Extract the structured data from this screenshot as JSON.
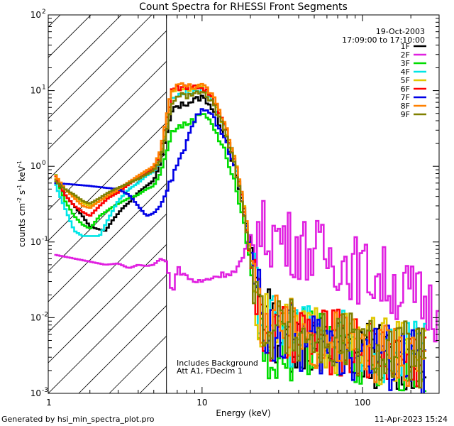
{
  "chart_data": {
    "type": "line",
    "title": "Count Spectra for RHESSI Front Segments",
    "xlabel": "Energy (keV)",
    "ylabel_parts": [
      "counts cm",
      "-2",
      " s",
      "-1",
      " keV",
      "-1"
    ],
    "xscale": "log",
    "yscale": "log",
    "xlim": [
      1.1,
      300
    ],
    "ylim": [
      0.001,
      100
    ],
    "x_ticks": [
      {
        "value": 10,
        "label": "10"
      },
      {
        "value": 100,
        "label": "100"
      }
    ],
    "x_edge_label": "1",
    "y_ticks": [
      {
        "value": 0.001,
        "base": "10",
        "exp": "-3"
      },
      {
        "value": 0.01,
        "base": "10",
        "exp": "-2"
      },
      {
        "value": 0.1,
        "base": "10",
        "exp": "-1"
      },
      {
        "value": 1,
        "base": "10",
        "exp": "0"
      },
      {
        "value": 10,
        "base": "10",
        "exp": "1"
      },
      {
        "value": 100,
        "base": "10",
        "exp": "2"
      }
    ],
    "header_lines": [
      "19-Oct-2003",
      "17:09:00 to 17:10:00"
    ],
    "shaded_region": {
      "x_from": 1.1,
      "x_to": 6
    },
    "annotations": [
      "Includes Background",
      "Att A1, FDecim 1"
    ],
    "series": [
      {
        "name": "1F",
        "color": "#000000",
        "points": [
          [
            1.2,
            0.72
          ],
          [
            1.4,
            0.42
          ],
          [
            1.6,
            0.3
          ],
          [
            1.8,
            0.22
          ],
          [
            2.0,
            0.16
          ],
          [
            2.2,
            0.15
          ],
          [
            2.5,
            0.14
          ],
          [
            2.8,
            0.2
          ],
          [
            3.2,
            0.28
          ],
          [
            3.6,
            0.35
          ],
          [
            4.0,
            0.45
          ],
          [
            4.5,
            0.55
          ],
          [
            5.0,
            0.65
          ],
          [
            5.5,
            1.1
          ],
          [
            6.0,
            2.6
          ],
          [
            6.5,
            5.2
          ],
          [
            7.0,
            6.2
          ],
          [
            8.0,
            6.8
          ],
          [
            9.0,
            7.5
          ],
          [
            10,
            8.2
          ],
          [
            11,
            7.0
          ],
          [
            12,
            5.0
          ],
          [
            14,
            2.5
          ],
          [
            16,
            0.9
          ],
          [
            18,
            0.3
          ],
          [
            20,
            0.1
          ],
          [
            22,
            0.03
          ],
          [
            25,
            0.01
          ],
          [
            30,
            0.006
          ],
          [
            40,
            0.005
          ],
          [
            60,
            0.004
          ],
          [
            100,
            0.0035
          ],
          [
            150,
            0.003
          ],
          [
            250,
            0.0025
          ]
        ]
      },
      {
        "name": "2F",
        "color": "#e020e0",
        "points": [
          [
            1.2,
            0.068
          ],
          [
            1.5,
            0.062
          ],
          [
            2.0,
            0.055
          ],
          [
            2.5,
            0.05
          ],
          [
            3.0,
            0.052
          ],
          [
            3.5,
            0.045
          ],
          [
            4.0,
            0.05
          ],
          [
            4.5,
            0.048
          ],
          [
            5.0,
            0.05
          ],
          [
            5.5,
            0.06
          ],
          [
            6.0,
            0.055
          ],
          [
            6.5,
            0.02
          ],
          [
            7.0,
            0.045
          ],
          [
            8.0,
            0.035
          ],
          [
            9.0,
            0.03
          ],
          [
            10,
            0.03
          ],
          [
            12,
            0.035
          ],
          [
            14,
            0.038
          ],
          [
            16,
            0.04
          ],
          [
            18,
            0.06
          ],
          [
            20,
            0.12
          ],
          [
            22,
            0.13
          ],
          [
            25,
            0.13
          ],
          [
            30,
            0.12
          ],
          [
            35,
            0.1
          ],
          [
            40,
            0.09
          ],
          [
            50,
            0.075
          ],
          [
            60,
            0.065
          ],
          [
            70,
            0.06
          ],
          [
            80,
            0.052
          ],
          [
            100,
            0.04
          ],
          [
            130,
            0.035
          ],
          [
            160,
            0.025
          ],
          [
            200,
            0.02
          ],
          [
            250,
            0.015
          ],
          [
            300,
            0.012
          ]
        ]
      },
      {
        "name": "3F",
        "color": "#00dc00",
        "points": [
          [
            1.2,
            0.85
          ],
          [
            1.4,
            0.35
          ],
          [
            1.6,
            0.22
          ],
          [
            1.8,
            0.17
          ],
          [
            2.0,
            0.15
          ],
          [
            2.3,
            0.22
          ],
          [
            2.7,
            0.28
          ],
          [
            3.0,
            0.32
          ],
          [
            3.5,
            0.38
          ],
          [
            4.0,
            0.42
          ],
          [
            4.5,
            0.5
          ],
          [
            5.0,
            0.55
          ],
          [
            5.5,
            0.8
          ],
          [
            6.0,
            1.5
          ],
          [
            6.5,
            2.8
          ],
          [
            7.0,
            3.3
          ],
          [
            8.0,
            3.6
          ],
          [
            9.0,
            4.2
          ],
          [
            10,
            5.2
          ],
          [
            11,
            4.5
          ],
          [
            12,
            3.0
          ],
          [
            14,
            1.5
          ],
          [
            16,
            0.6
          ],
          [
            18,
            0.2
          ],
          [
            20,
            0.05
          ],
          [
            22,
            0.012
          ],
          [
            25,
            0.004
          ],
          [
            30,
            0.003
          ],
          [
            40,
            0.005
          ],
          [
            60,
            0.004
          ],
          [
            100,
            0.0035
          ],
          [
            150,
            0.003
          ],
          [
            250,
            0.0025
          ]
        ]
      },
      {
        "name": "4F",
        "color": "#00e6e6",
        "points": [
          [
            1.2,
            0.62
          ],
          [
            1.4,
            0.28
          ],
          [
            1.6,
            0.14
          ],
          [
            1.8,
            0.12
          ],
          [
            2.0,
            0.12
          ],
          [
            2.3,
            0.12
          ],
          [
            2.6,
            0.2
          ],
          [
            3.0,
            0.35
          ],
          [
            3.5,
            0.5
          ],
          [
            4.0,
            0.6
          ],
          [
            4.5,
            0.75
          ],
          [
            5.0,
            0.85
          ],
          [
            5.5,
            1.2
          ],
          [
            6.0,
            3.0
          ],
          [
            6.5,
            7.5
          ],
          [
            7.0,
            9.0
          ],
          [
            8.0,
            9.5
          ],
          [
            9.0,
            10
          ],
          [
            10,
            10.5
          ],
          [
            11,
            9.0
          ],
          [
            12,
            6.5
          ],
          [
            14,
            3.0
          ],
          [
            16,
            1.2
          ],
          [
            18,
            0.35
          ],
          [
            20,
            0.06
          ],
          [
            22,
            0.015
          ],
          [
            25,
            0.008
          ],
          [
            30,
            0.007
          ],
          [
            40,
            0.006
          ],
          [
            60,
            0.005
          ],
          [
            100,
            0.004
          ],
          [
            150,
            0.0035
          ],
          [
            250,
            0.003
          ]
        ]
      },
      {
        "name": "5F",
        "color": "#e0c800",
        "points": [
          [
            1.2,
            0.72
          ],
          [
            1.4,
            0.5
          ],
          [
            1.6,
            0.4
          ],
          [
            1.8,
            0.33
          ],
          [
            2.0,
            0.3
          ],
          [
            2.3,
            0.35
          ],
          [
            2.6,
            0.4
          ],
          [
            3.0,
            0.48
          ],
          [
            3.5,
            0.6
          ],
          [
            4.0,
            0.7
          ],
          [
            4.5,
            0.8
          ],
          [
            5.0,
            0.9
          ],
          [
            5.5,
            1.3
          ],
          [
            6.0,
            3.2
          ],
          [
            6.5,
            9.0
          ],
          [
            7.0,
            10.5
          ],
          [
            8.0,
            10.5
          ],
          [
            9.0,
            11
          ],
          [
            10,
            11
          ],
          [
            11,
            9.5
          ],
          [
            12,
            7.0
          ],
          [
            14,
            3.2
          ],
          [
            16,
            1.2
          ],
          [
            18,
            0.35
          ],
          [
            20,
            0.06
          ],
          [
            22,
            0.015
          ],
          [
            25,
            0.008
          ],
          [
            30,
            0.007
          ],
          [
            40,
            0.006
          ],
          [
            60,
            0.005
          ],
          [
            100,
            0.004
          ],
          [
            150,
            0.0035
          ],
          [
            250,
            0.003
          ]
        ]
      },
      {
        "name": "6F",
        "color": "#ff0000",
        "points": [
          [
            1.2,
            0.8
          ],
          [
            1.4,
            0.42
          ],
          [
            1.6,
            0.3
          ],
          [
            1.8,
            0.25
          ],
          [
            2.0,
            0.22
          ],
          [
            2.3,
            0.3
          ],
          [
            2.6,
            0.38
          ],
          [
            3.0,
            0.45
          ],
          [
            3.5,
            0.58
          ],
          [
            4.0,
            0.7
          ],
          [
            4.5,
            0.82
          ],
          [
            5.0,
            0.95
          ],
          [
            5.5,
            1.5
          ],
          [
            6.0,
            4.0
          ],
          [
            6.5,
            9.5
          ],
          [
            7.0,
            11
          ],
          [
            8.0,
            11
          ],
          [
            9.0,
            11
          ],
          [
            10,
            11
          ],
          [
            11,
            9.5
          ],
          [
            12,
            7.0
          ],
          [
            14,
            3.2
          ],
          [
            16,
            1.2
          ],
          [
            18,
            0.35
          ],
          [
            20,
            0.06
          ],
          [
            22,
            0.015
          ],
          [
            25,
            0.006
          ],
          [
            30,
            0.005
          ],
          [
            40,
            0.006
          ],
          [
            60,
            0.005
          ],
          [
            100,
            0.004
          ],
          [
            150,
            0.0035
          ],
          [
            250,
            0.003
          ]
        ]
      },
      {
        "name": "7F",
        "color": "#0000e6",
        "points": [
          [
            1.2,
            0.6
          ],
          [
            1.5,
            0.58
          ],
          [
            2.0,
            0.55
          ],
          [
            2.5,
            0.52
          ],
          [
            3.0,
            0.5
          ],
          [
            3.5,
            0.42
          ],
          [
            4.0,
            0.3
          ],
          [
            4.5,
            0.22
          ],
          [
            5.0,
            0.24
          ],
          [
            5.5,
            0.3
          ],
          [
            6.0,
            0.45
          ],
          [
            6.5,
            0.7
          ],
          [
            7.0,
            1.0
          ],
          [
            8.0,
            2.0
          ],
          [
            9.0,
            4.0
          ],
          [
            10,
            6.2
          ],
          [
            11,
            5.5
          ],
          [
            12,
            4.0
          ],
          [
            14,
            2.2
          ],
          [
            16,
            0.9
          ],
          [
            18,
            0.3
          ],
          [
            20,
            0.08
          ],
          [
            22,
            0.025
          ],
          [
            25,
            0.008
          ],
          [
            30,
            0.006
          ],
          [
            40,
            0.005
          ],
          [
            60,
            0.004
          ],
          [
            100,
            0.0035
          ],
          [
            150,
            0.003
          ],
          [
            250,
            0.0025
          ]
        ]
      },
      {
        "name": "8F",
        "color": "#ff8000",
        "points": [
          [
            1.2,
            0.8
          ],
          [
            1.4,
            0.5
          ],
          [
            1.6,
            0.38
          ],
          [
            1.8,
            0.3
          ],
          [
            2.0,
            0.28
          ],
          [
            2.3,
            0.35
          ],
          [
            2.6,
            0.42
          ],
          [
            3.0,
            0.5
          ],
          [
            3.5,
            0.62
          ],
          [
            4.0,
            0.75
          ],
          [
            4.5,
            0.88
          ],
          [
            5.0,
            1.0
          ],
          [
            5.5,
            1.6
          ],
          [
            6.0,
            4.5
          ],
          [
            6.5,
            10.5
          ],
          [
            7.0,
            12
          ],
          [
            8.0,
            11.5
          ],
          [
            9.0,
            11.5
          ],
          [
            10,
            11.5
          ],
          [
            11,
            10
          ],
          [
            12,
            7.5
          ],
          [
            14,
            3.5
          ],
          [
            16,
            1.3
          ],
          [
            18,
            0.4
          ],
          [
            20,
            0.07
          ],
          [
            22,
            0.015
          ],
          [
            25,
            0.008
          ],
          [
            30,
            0.007
          ],
          [
            40,
            0.006
          ],
          [
            60,
            0.005
          ],
          [
            100,
            0.004
          ],
          [
            150,
            0.0035
          ],
          [
            250,
            0.003
          ]
        ]
      },
      {
        "name": "9F",
        "color": "#808000",
        "points": [
          [
            1.2,
            0.65
          ],
          [
            1.4,
            0.5
          ],
          [
            1.6,
            0.42
          ],
          [
            1.8,
            0.35
          ],
          [
            2.0,
            0.32
          ],
          [
            2.3,
            0.38
          ],
          [
            2.6,
            0.45
          ],
          [
            3.0,
            0.52
          ],
          [
            3.5,
            0.6
          ],
          [
            4.0,
            0.68
          ],
          [
            4.5,
            0.78
          ],
          [
            5.0,
            0.88
          ],
          [
            5.5,
            1.2
          ],
          [
            6.0,
            2.8
          ],
          [
            6.5,
            7.0
          ],
          [
            7.0,
            8.5
          ],
          [
            8.0,
            8.5
          ],
          [
            9.0,
            9.0
          ],
          [
            10,
            9.5
          ],
          [
            11,
            8.0
          ],
          [
            12,
            6.0
          ],
          [
            14,
            2.8
          ],
          [
            16,
            1.0
          ],
          [
            18,
            0.3
          ],
          [
            20,
            0.06
          ],
          [
            22,
            0.015
          ],
          [
            25,
            0.008
          ],
          [
            30,
            0.007
          ],
          [
            40,
            0.006
          ],
          [
            60,
            0.005
          ],
          [
            100,
            0.004
          ],
          [
            150,
            0.0035
          ],
          [
            250,
            0.003
          ]
        ]
      }
    ]
  },
  "footer": {
    "left": "Generated by hsi_min_spectra_plot.pro",
    "right": "11-Apr-2023 15:24"
  }
}
